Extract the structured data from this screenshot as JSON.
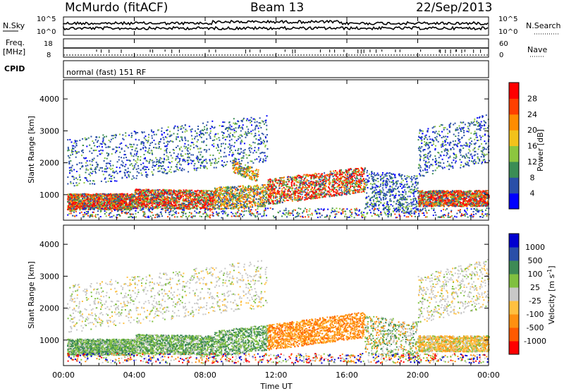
{
  "header": {
    "station": "McMurdo (fitACF)",
    "beam": "Beam 13",
    "date": "22/Sep/2013"
  },
  "noise_panel": {
    "left_label": "N.Sky",
    "right_label": "N.Search",
    "ticks": [
      "10^5",
      "10^0"
    ]
  },
  "freq_panel": {
    "left_label_1": "Freq.",
    "left_label_2": "[MHz]",
    "left_ticks": [
      "18",
      "8"
    ],
    "right_label": "Nave",
    "right_ticks": [
      "60",
      "0"
    ]
  },
  "cpid_panel": {
    "label": "CPID",
    "program": "normal (fast) 151 RF"
  },
  "colors": {
    "power": [
      "#0000ff",
      "#2a4fa8",
      "#3b8d55",
      "#8cc63f",
      "#f2c21b",
      "#ff8c00",
      "#ff4000",
      "#ff0000"
    ],
    "velocity": [
      "#ff0000",
      "#ff5a00",
      "#ff9010",
      "#ffc040",
      "#c8c8c8",
      "#80c040",
      "#3d8a55",
      "#2a4fa8",
      "#0000d0"
    ]
  },
  "chart_data": [
    {
      "type": "heatmap",
      "title": "Power",
      "ylabel": "Slant Range [km]",
      "xlabel": "Time UT",
      "ylim": [
        200,
        4600
      ],
      "yticks": [
        "1000",
        "2000",
        "3000",
        "4000"
      ],
      "xticks": [
        "00:00",
        "04:00",
        "08:00",
        "12:00",
        "16:00",
        "20:00",
        "00:00"
      ],
      "colorbar": {
        "label": "Power [dB]",
        "ticks": [
          "4",
          "8",
          "12",
          "16",
          "20",
          "24",
          "28"
        ],
        "range": [
          0,
          32
        ]
      }
    },
    {
      "type": "heatmap",
      "title": "Velocity",
      "ylabel": "Slant Range [km]",
      "xlabel": "Time UT",
      "ylim": [
        200,
        4600
      ],
      "yticks": [
        "1000",
        "2000",
        "3000",
        "4000"
      ],
      "xticks": [
        "00:00",
        "04:00",
        "08:00",
        "12:00",
        "16:00",
        "20:00",
        "00:00"
      ],
      "colorbar": {
        "label": "Velocity [m s",
        "label_exp": "-1",
        "label_close": "]",
        "ticks": [
          "1000",
          "500",
          "100",
          "25",
          "-25",
          "-100",
          "-500",
          "-1000"
        ]
      }
    }
  ]
}
